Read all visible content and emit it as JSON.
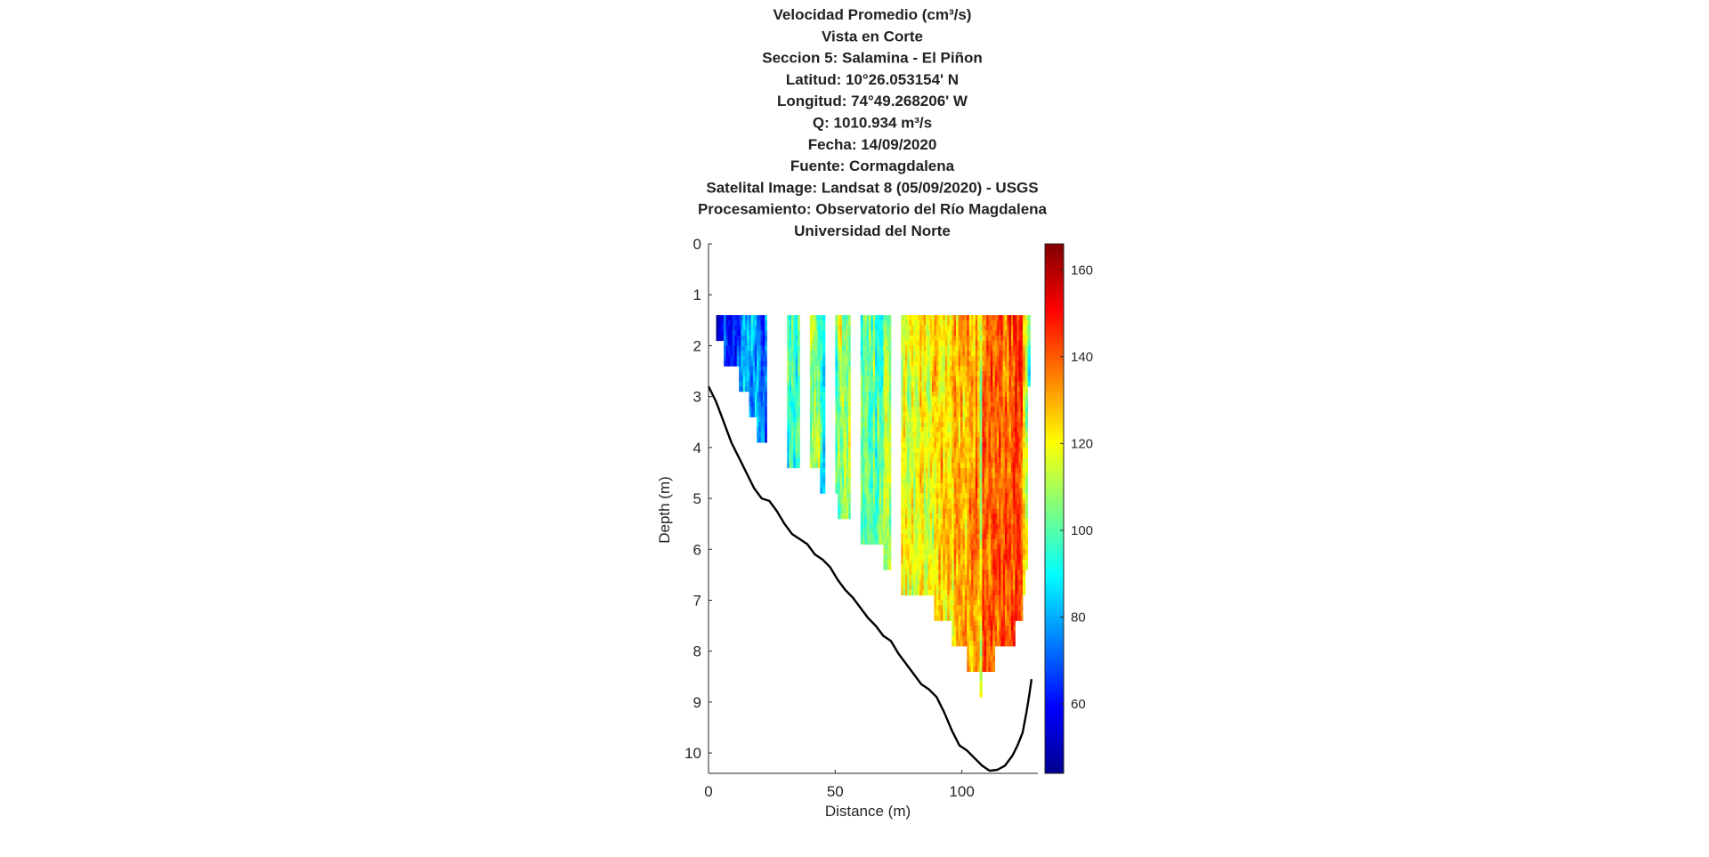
{
  "chart_data": {
    "type": "heatmap",
    "title_lines": [
      "Velocidad Promedio (cm³/s)",
      "Vista en Corte",
      "Seccion 5: Salamina - El Piñon",
      "Latitud: 10°26.053154' N",
      "Longitud: 74°49.268206' W",
      "Q: 1010.934 m³/s",
      "Fecha: 14/09/2020",
      "Fuente: Cormagdalena",
      "Satelital Image: Landsat 8 (05/09/2020) - USGS",
      "Procesamiento: Observatorio del Río Magdalena",
      "Universidad del Norte"
    ],
    "xlabel": "Distance (m)",
    "ylabel": "Depth (m)",
    "xlim": [
      0,
      130
    ],
    "ylim": [
      0,
      10.4
    ],
    "y_reversed": true,
    "xticks": [
      0,
      50,
      100
    ],
    "yticks": [
      0,
      1,
      2,
      3,
      4,
      5,
      6,
      7,
      8,
      9,
      10
    ],
    "colormap": "jet",
    "colorbar": {
      "range": [
        44,
        166
      ],
      "ticks": [
        60,
        80,
        100,
        120,
        140,
        160
      ],
      "colors": [
        "#00008f",
        "#0000ff",
        "#00ffff",
        "#ffff00",
        "#ff0000",
        "#800000"
      ]
    },
    "measurement_top_depth": 1.4,
    "ensemble_columns": [
      {
        "x0": 3,
        "x1": 6,
        "bottom": 1.9,
        "base": 52
      },
      {
        "x0": 6,
        "x1": 12,
        "bottom": 2.4,
        "base": 62
      },
      {
        "x0": 12,
        "x1": 16,
        "bottom": 2.9,
        "base": 78
      },
      {
        "x0": 16,
        "x1": 19,
        "bottom": 3.4,
        "base": 80
      },
      {
        "x0": 19,
        "x1": 23,
        "bottom": 3.9,
        "base": 72
      },
      {
        "x0": 31,
        "x1": 36,
        "bottom": 4.4,
        "base": 95
      },
      {
        "x0": 40,
        "x1": 44,
        "bottom": 4.4,
        "base": 108
      },
      {
        "x0": 44,
        "x1": 46,
        "bottom": 4.9,
        "base": 92
      },
      {
        "x0": 50,
        "x1": 51,
        "bottom": 4.9,
        "base": 100
      },
      {
        "x0": 51,
        "x1": 56,
        "bottom": 5.4,
        "base": 108
      },
      {
        "x0": 60,
        "x1": 69,
        "bottom": 5.9,
        "base": 100
      },
      {
        "x0": 69,
        "x1": 72,
        "bottom": 6.4,
        "base": 108
      },
      {
        "x0": 76,
        "x1": 89,
        "bottom": 6.9,
        "base": 118
      },
      {
        "x0": 89,
        "x1": 96,
        "bottom": 7.4,
        "base": 125
      },
      {
        "x0": 96,
        "x1": 102,
        "bottom": 7.9,
        "base": 128
      },
      {
        "x0": 102,
        "x1": 107,
        "bottom": 8.4,
        "base": 132
      },
      {
        "x0": 107,
        "x1": 108,
        "bottom": 8.9,
        "base": 118
      },
      {
        "x0": 108,
        "x1": 113,
        "bottom": 8.4,
        "base": 138
      },
      {
        "x0": 113,
        "x1": 121,
        "bottom": 7.9,
        "base": 140
      },
      {
        "x0": 121,
        "x1": 124,
        "bottom": 7.4,
        "base": 142
      },
      {
        "x0": 124,
        "x1": 125,
        "bottom": 6.9,
        "base": 125
      },
      {
        "x0": 125,
        "x1": 126,
        "bottom": 6.4,
        "base": 115
      },
      {
        "x0": 126,
        "x1": 127,
        "bottom": 2.8,
        "base": 100
      }
    ],
    "bed_profile": [
      {
        "x": 0,
        "depth": 2.8
      },
      {
        "x": 3,
        "depth": 3.1
      },
      {
        "x": 6,
        "depth": 3.5
      },
      {
        "x": 9,
        "depth": 3.9
      },
      {
        "x": 12,
        "depth": 4.2
      },
      {
        "x": 15,
        "depth": 4.5
      },
      {
        "x": 18,
        "depth": 4.8
      },
      {
        "x": 21,
        "depth": 5.0
      },
      {
        "x": 24,
        "depth": 5.05
      },
      {
        "x": 27,
        "depth": 5.25
      },
      {
        "x": 30,
        "depth": 5.5
      },
      {
        "x": 33,
        "depth": 5.7
      },
      {
        "x": 36,
        "depth": 5.8
      },
      {
        "x": 39,
        "depth": 5.9
      },
      {
        "x": 42,
        "depth": 6.1
      },
      {
        "x": 45,
        "depth": 6.2
      },
      {
        "x": 48,
        "depth": 6.35
      },
      {
        "x": 51,
        "depth": 6.6
      },
      {
        "x": 54,
        "depth": 6.8
      },
      {
        "x": 57,
        "depth": 6.95
      },
      {
        "x": 60,
        "depth": 7.15
      },
      {
        "x": 63,
        "depth": 7.35
      },
      {
        "x": 66,
        "depth": 7.5
      },
      {
        "x": 69,
        "depth": 7.7
      },
      {
        "x": 72,
        "depth": 7.8
      },
      {
        "x": 75,
        "depth": 8.05
      },
      {
        "x": 78,
        "depth": 8.25
      },
      {
        "x": 81,
        "depth": 8.45
      },
      {
        "x": 84,
        "depth": 8.65
      },
      {
        "x": 87,
        "depth": 8.75
      },
      {
        "x": 90,
        "depth": 8.9
      },
      {
        "x": 93,
        "depth": 9.2
      },
      {
        "x": 96,
        "depth": 9.55
      },
      {
        "x": 99,
        "depth": 9.85
      },
      {
        "x": 102,
        "depth": 9.95
      },
      {
        "x": 105,
        "depth": 10.1
      },
      {
        "x": 108,
        "depth": 10.25
      },
      {
        "x": 111,
        "depth": 10.35
      },
      {
        "x": 114,
        "depth": 10.33
      },
      {
        "x": 117,
        "depth": 10.25
      },
      {
        "x": 120,
        "depth": 10.05
      },
      {
        "x": 122,
        "depth": 9.85
      },
      {
        "x": 124,
        "depth": 9.6
      },
      {
        "x": 125.5,
        "depth": 9.2
      },
      {
        "x": 126.5,
        "depth": 8.9
      },
      {
        "x": 127.5,
        "depth": 8.55
      }
    ]
  }
}
